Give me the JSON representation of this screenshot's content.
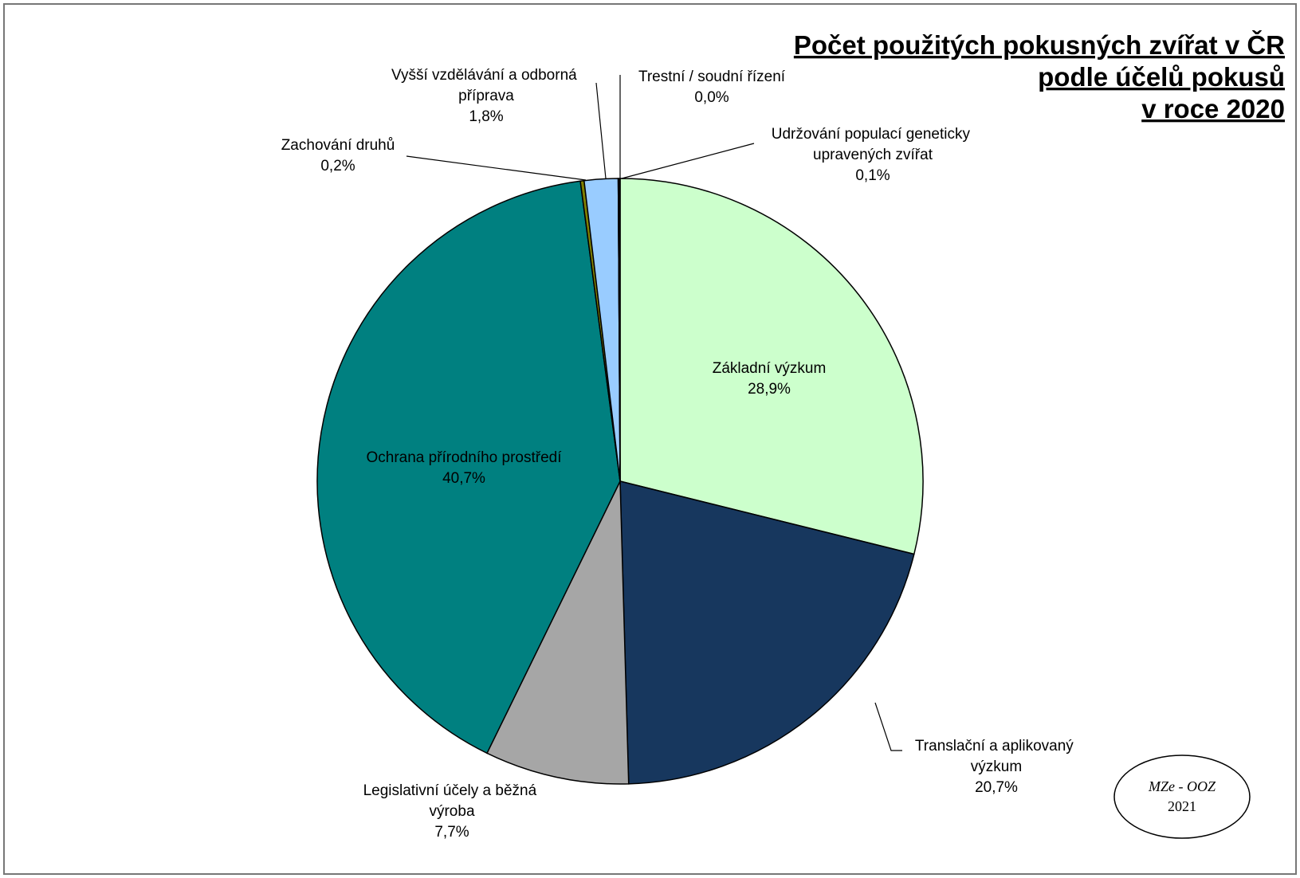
{
  "chart_data": {
    "type": "pie",
    "title_lines": [
      "Počet použitých pokusných zvířat v ČR",
      "podle účelů pokusů",
      "v roce 2020"
    ],
    "categories": [
      "Základní výzkum",
      "Translační a aplikovaný výzkum",
      "Legislativní účely a běžná výroba",
      "Ochrana přírodního prostředí",
      "Zachování druhů",
      "Vyšší vzdělávání a odborná příprava",
      "Trestní / soudní řízení",
      "Udržování populací geneticky upravených zvířat"
    ],
    "values": [
      28.9,
      20.7,
      7.7,
      40.7,
      0.2,
      1.8,
      0.0,
      0.1
    ],
    "value_labels": [
      "28,9%",
      "20,7%",
      "7,7%",
      "40,7%",
      "0,2%",
      "1,8%",
      "0,0%",
      "0,1%"
    ],
    "colors": [
      "#ccffcc",
      "#17375e",
      "#a6a6a6",
      "#008080",
      "#808000",
      "#99ccff",
      "#ffffff",
      "#000000"
    ],
    "source": [
      "MZe - OOZ",
      "2021"
    ]
  }
}
